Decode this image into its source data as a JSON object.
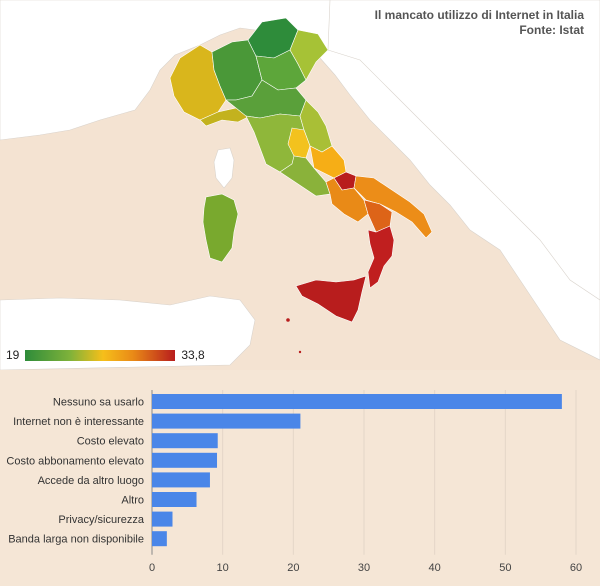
{
  "map": {
    "title_line1": "Il mancato utilizzo di Internet in Italia",
    "title_line2": "Fonte: Istat",
    "legend_min": "19",
    "legend_max": "33,8",
    "colors": {
      "sea": "#f4e3d2",
      "land_other": "#ffffff",
      "scale_low": "#2e8c3a",
      "scale_mid": "#f6bf1a",
      "scale_high": "#b81d1d"
    }
  },
  "chart_data": {
    "type": "bar",
    "orientation": "horizontal",
    "categories": [
      "Nessuno sa usarlo",
      "Internet non è interessante",
      "Costo elevato",
      "Costo abbonamento elevato",
      "Accede da altro luogo",
      "Altro",
      "Privacy/sicurezza",
      "Banda larga non disponibile"
    ],
    "values": [
      58,
      21,
      9.3,
      9.2,
      8.2,
      6.3,
      2.9,
      2.1
    ],
    "xlim": [
      0,
      60
    ],
    "xticks": [
      "0",
      "10",
      "20",
      "30",
      "40",
      "50",
      "60"
    ],
    "bar_color": "#4a86e8",
    "grid": true
  }
}
